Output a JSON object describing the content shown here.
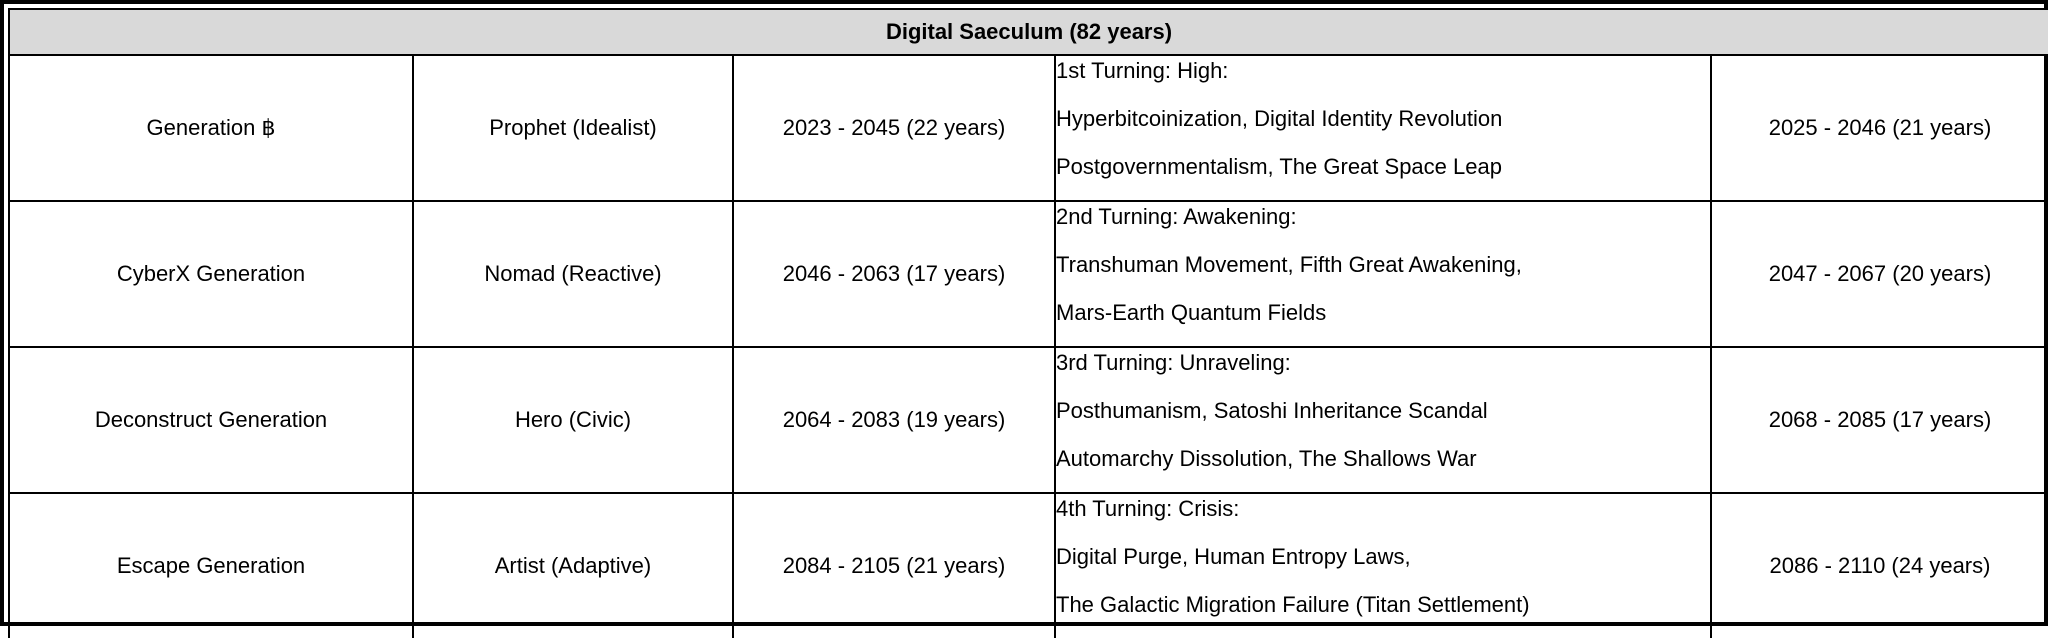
{
  "table": {
    "title": "Digital Saeculum (82 years)",
    "rows": [
      {
        "generation": "Generation ฿",
        "archetype": "Prophet (Idealist)",
        "birth_years": "2023 - 2045 (22 years)",
        "turning": "1st Turning: High:",
        "events_line1": "Hyperbitcoinization, Digital Identity Revolution",
        "events_line2": "Postgovernmentalism, The Great Space Leap",
        "turning_years": "2025 - 2046 (21 years)"
      },
      {
        "generation": "CyberX Generation",
        "archetype": "Nomad (Reactive)",
        "birth_years": "2046 - 2063 (17 years)",
        "turning": "2nd Turning: Awakening:",
        "events_line1": "Transhuman Movement, Fifth Great Awakening,",
        "events_line2": "Mars-Earth Quantum Fields",
        "turning_years": "2047 - 2067 (20 years)"
      },
      {
        "generation": "Deconstruct Generation",
        "archetype": "Hero (Civic)",
        "birth_years": "2064 - 2083 (19 years)",
        "turning": "3rd Turning: Unraveling:",
        "events_line1": "Posthumanism, Satoshi Inheritance Scandal",
        "events_line2": "Automarchy Dissolution, The Shallows War",
        "turning_years": "2068 - 2085 (17 years)"
      },
      {
        "generation": "Escape Generation",
        "archetype": "Artist (Adaptive)",
        "birth_years": "2084 - 2105 (21 years)",
        "turning": "4th Turning: Crisis:",
        "events_line1": "Digital Purge, Human Entropy Laws,",
        "events_line2": "The Galactic Migration Failure (Titan Settlement)",
        "turning_years": "2086 - 2110 (24 years)"
      }
    ]
  }
}
